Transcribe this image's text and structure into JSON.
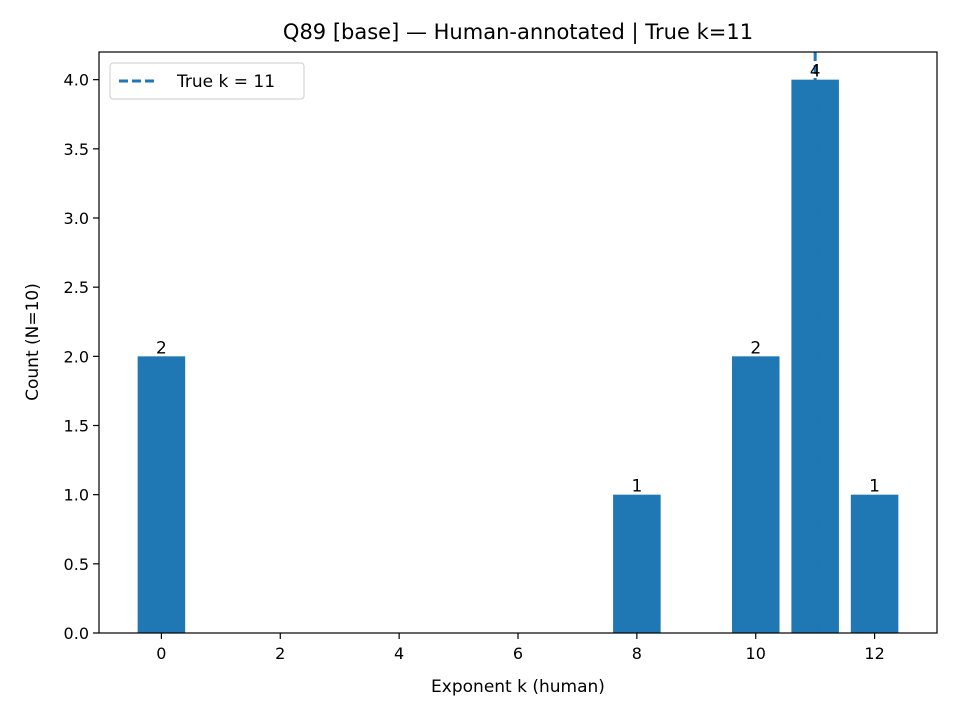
{
  "chart_data": {
    "type": "bar",
    "title": "Q89 [base] — Human-annotated | True k=11",
    "xlabel": "Exponent k (human)",
    "ylabel": "Count (N=10)",
    "x": [
      0,
      8,
      10,
      11,
      12
    ],
    "values": [
      2,
      1,
      2,
      4,
      1
    ],
    "bar_labels": [
      "2",
      "1",
      "2",
      "4",
      "1"
    ],
    "xlim": [
      -1.05,
      13.05
    ],
    "ylim": [
      0,
      4.2
    ],
    "xticks": [
      0,
      2,
      4,
      6,
      8,
      10,
      12
    ],
    "xtick_labels": [
      "0",
      "2",
      "4",
      "6",
      "8",
      "10",
      "12"
    ],
    "yticks": [
      0,
      0.5,
      1,
      1.5,
      2,
      2.5,
      3,
      3.5,
      4
    ],
    "ytick_labels": [
      "0.0",
      "0.5",
      "1.0",
      "1.5",
      "2.0",
      "2.5",
      "3.0",
      "3.5",
      "4.0"
    ],
    "bar_color": "#1f77b4",
    "reference_line": {
      "x": 11,
      "label": "True k = 11",
      "style": "dashed",
      "color": "#1f77b4"
    },
    "legend": {
      "placement": "top-left",
      "entries": [
        "True k = 11"
      ]
    },
    "grid": false
  }
}
